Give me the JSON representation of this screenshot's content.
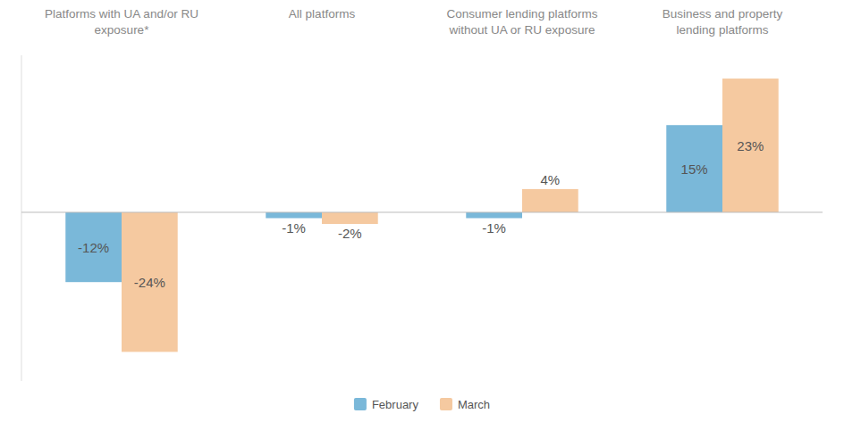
{
  "chart_data": {
    "type": "bar",
    "categories": [
      "Platforms with UA and/or RU\nexposure*",
      "All platforms",
      "Consumer lending platforms\nwithout UA or RU exposure",
      "Business and property\nlending platforms"
    ],
    "series": [
      {
        "name": "February",
        "color": "#7ab8d9",
        "values": [
          -12,
          -1,
          -1,
          15
        ],
        "value_labels": [
          "-12%",
          "-1%",
          "-1%",
          "15%"
        ]
      },
      {
        "name": "March",
        "color": "#f5c9a0",
        "values": [
          -24,
          -2,
          4,
          23
        ],
        "value_labels": [
          "-24%",
          "-2%",
          "4%",
          "23%"
        ]
      }
    ],
    "ylim": [
      -29,
      27
    ],
    "data_labels": true,
    "tick_labels": false,
    "grid": false,
    "legend": "bottom"
  }
}
